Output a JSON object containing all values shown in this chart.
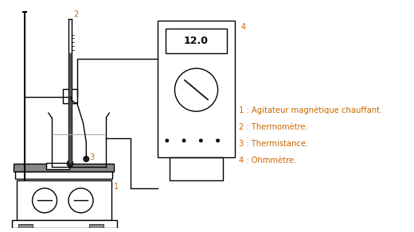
{
  "legend_items": [
    "1 : Agitateur magnétique chauffant.",
    "2 : Thermomètre.",
    "3 : Thermistance.",
    "4 : Ohmmètre."
  ],
  "legend_color": "#cc6600",
  "label_color": "#cc6600",
  "diagram_color": "#000000",
  "background_color": "#ffffff",
  "display_text": "12.0",
  "label_1": "1",
  "label_2": "2",
  "label_3": "3",
  "label_4": "4"
}
